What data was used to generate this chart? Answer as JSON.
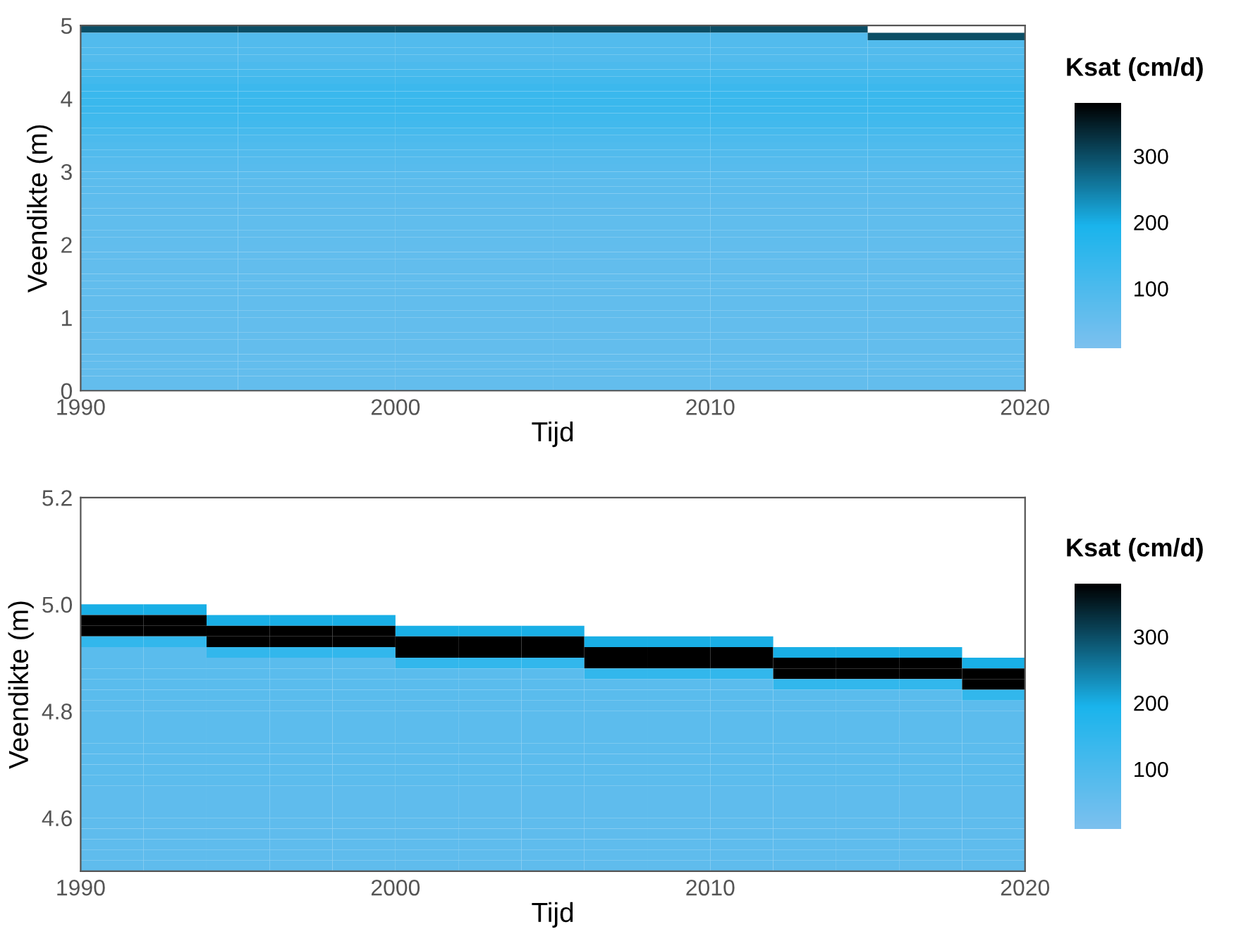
{
  "chart_data": [
    {
      "type": "heatmap",
      "xlabel": "Tijd",
      "ylabel": "Veendikte (m)",
      "clabel": "Ksat (cm/d)",
      "xlim": [
        1990,
        2020
      ],
      "xticks": [
        1990,
        2000,
        2010,
        2020
      ],
      "ylim": [
        0,
        5
      ],
      "yticks": [
        0,
        1,
        2,
        3,
        4,
        5
      ],
      "clim": [
        10,
        380
      ],
      "cticks": [
        100,
        200,
        300
      ],
      "colors": [
        "#7cc0ee",
        "#1ab4ec",
        "#000000"
      ],
      "grid": false,
      "x": [
        1992.5,
        1997.5,
        2002.5,
        2007.5,
        2012.5,
        2017.5
      ],
      "y": [
        4.95,
        4.85,
        4.75,
        4.65,
        4.55,
        4.45,
        4.35,
        4.25,
        4.15,
        4.05,
        3.95,
        3.85,
        3.75,
        3.65,
        3.55,
        3.45,
        3.35,
        3.25,
        3.15,
        3.05,
        2.95,
        2.85,
        2.75,
        2.65,
        2.55,
        2.45,
        2.35,
        2.25,
        2.15,
        2.05,
        1.95,
        1.85,
        1.75,
        1.65,
        1.55,
        1.45,
        1.35,
        1.25,
        1.15,
        1.05,
        0.95,
        0.85,
        0.75,
        0.65,
        0.55,
        0.45,
        0.35,
        0.25,
        0.15,
        0.05
      ],
      "cells": [
        [
          300,
          300,
          300,
          300,
          300,
          null
        ],
        [
          90,
          90,
          90,
          90,
          90,
          300
        ],
        [
          90,
          90,
          90,
          90,
          90,
          90
        ],
        [
          90,
          90,
          90,
          90,
          90,
          90
        ],
        [
          90,
          90,
          90,
          90,
          90,
          90
        ],
        [
          100,
          100,
          100,
          100,
          100,
          100
        ],
        [
          110,
          110,
          110,
          110,
          110,
          110
        ],
        [
          120,
          120,
          120,
          120,
          120,
          120
        ],
        [
          130,
          130,
          130,
          130,
          130,
          130
        ],
        [
          135,
          135,
          135,
          135,
          135,
          135
        ],
        [
          135,
          135,
          135,
          135,
          135,
          135
        ],
        [
          130,
          130,
          130,
          130,
          130,
          130
        ],
        [
          125,
          125,
          125,
          125,
          125,
          125
        ],
        [
          120,
          120,
          120,
          120,
          120,
          120
        ],
        [
          110,
          110,
          110,
          110,
          110,
          110
        ],
        [
          100,
          100,
          100,
          100,
          100,
          100
        ],
        [
          95,
          95,
          95,
          95,
          95,
          95
        ],
        [
          90,
          90,
          90,
          90,
          90,
          90
        ],
        [
          85,
          85,
          85,
          85,
          85,
          85
        ],
        [
          80,
          80,
          80,
          80,
          80,
          80
        ],
        [
          75,
          75,
          75,
          75,
          75,
          75
        ],
        [
          72,
          72,
          72,
          72,
          72,
          72
        ],
        [
          70,
          70,
          70,
          70,
          70,
          70
        ],
        [
          68,
          68,
          68,
          68,
          68,
          68
        ],
        [
          66,
          66,
          66,
          66,
          66,
          66
        ],
        [
          65,
          65,
          65,
          65,
          65,
          65
        ],
        [
          64,
          64,
          64,
          64,
          64,
          64
        ],
        [
          63,
          63,
          63,
          63,
          63,
          63
        ],
        [
          62,
          62,
          62,
          62,
          62,
          62
        ],
        [
          61,
          61,
          61,
          61,
          61,
          61
        ],
        [
          60,
          60,
          60,
          60,
          60,
          60
        ],
        [
          60,
          60,
          60,
          60,
          60,
          60
        ],
        [
          60,
          60,
          60,
          60,
          60,
          60
        ],
        [
          60,
          60,
          60,
          60,
          60,
          60
        ],
        [
          60,
          60,
          60,
          60,
          60,
          60
        ],
        [
          60,
          60,
          60,
          60,
          60,
          60
        ],
        [
          60,
          60,
          60,
          60,
          60,
          60
        ],
        [
          60,
          60,
          60,
          60,
          60,
          60
        ],
        [
          60,
          60,
          60,
          60,
          60,
          60
        ],
        [
          60,
          60,
          60,
          60,
          60,
          60
        ],
        [
          58,
          58,
          58,
          58,
          58,
          58
        ],
        [
          58,
          58,
          58,
          58,
          58,
          58
        ],
        [
          58,
          58,
          58,
          58,
          58,
          58
        ],
        [
          58,
          58,
          58,
          58,
          58,
          58
        ],
        [
          58,
          58,
          58,
          58,
          58,
          58
        ],
        [
          58,
          58,
          58,
          58,
          58,
          58
        ],
        [
          58,
          58,
          58,
          58,
          58,
          58
        ],
        [
          58,
          58,
          58,
          58,
          58,
          58
        ],
        [
          58,
          58,
          58,
          58,
          58,
          58
        ],
        [
          58,
          58,
          58,
          58,
          58,
          58
        ]
      ]
    },
    {
      "type": "heatmap",
      "xlabel": "Tijd",
      "ylabel": "Veendikte (m)",
      "clabel": "Ksat (cm/d)",
      "xlim": [
        1990,
        2020
      ],
      "xticks": [
        1990,
        2000,
        2010,
        2020
      ],
      "ylim": [
        4.5,
        5.2
      ],
      "yticks": [
        {
          "value": 4.6,
          "label": "4.6"
        },
        {
          "value": 4.8,
          "label": "4.8"
        },
        {
          "value": 5.0,
          "label": "5.0"
        },
        {
          "value": 5.2,
          "label": "5.2"
        }
      ],
      "clim": [
        10,
        380
      ],
      "cticks": [
        100,
        200,
        300
      ],
      "colors": [
        "#7cc0ee",
        "#1ab4ec",
        "#000000"
      ],
      "grid": false,
      "x": [
        1991,
        1993,
        1995,
        1997,
        1999,
        2001,
        2003,
        2005,
        2007,
        2009,
        2011,
        2013,
        2015,
        2017,
        2019
      ],
      "y": [
        4.99,
        4.97,
        4.95,
        4.93,
        4.91,
        4.89,
        4.87,
        4.85,
        4.83,
        4.81,
        4.79,
        4.77,
        4.75,
        4.73,
        4.71,
        4.69,
        4.67,
        4.65,
        4.63,
        4.61,
        4.59,
        4.57,
        4.55,
        4.53,
        4.51
      ],
      "cells": [
        [
          200,
          200,
          null,
          null,
          null,
          null,
          null,
          null,
          null,
          null,
          null,
          null,
          null,
          null,
          null
        ],
        [
          380,
          380,
          200,
          200,
          200,
          null,
          null,
          null,
          null,
          null,
          null,
          null,
          null,
          null,
          null
        ],
        [
          380,
          380,
          380,
          380,
          380,
          200,
          200,
          200,
          null,
          null,
          null,
          null,
          null,
          null,
          null
        ],
        [
          150,
          150,
          380,
          380,
          380,
          380,
          380,
          380,
          200,
          200,
          200,
          null,
          null,
          null,
          null
        ],
        [
          75,
          75,
          150,
          150,
          150,
          380,
          380,
          380,
          380,
          380,
          380,
          200,
          200,
          200,
          null
        ],
        [
          75,
          75,
          75,
          75,
          75,
          150,
          150,
          150,
          380,
          380,
          380,
          380,
          380,
          380,
          200
        ],
        [
          75,
          75,
          75,
          75,
          75,
          75,
          75,
          75,
          150,
          150,
          150,
          380,
          380,
          380,
          380
        ],
        [
          75,
          75,
          75,
          75,
          75,
          75,
          75,
          75,
          75,
          75,
          75,
          150,
          150,
          150,
          380
        ],
        [
          75,
          75,
          75,
          75,
          75,
          75,
          75,
          75,
          75,
          75,
          75,
          75,
          75,
          75,
          150
        ],
        [
          70,
          70,
          70,
          70,
          70,
          70,
          70,
          70,
          70,
          70,
          70,
          70,
          70,
          70,
          70
        ],
        [
          70,
          70,
          70,
          70,
          70,
          70,
          70,
          70,
          70,
          70,
          70,
          70,
          70,
          70,
          70
        ],
        [
          70,
          70,
          70,
          70,
          70,
          70,
          70,
          70,
          70,
          70,
          70,
          70,
          70,
          70,
          70
        ],
        [
          70,
          70,
          70,
          70,
          70,
          70,
          70,
          70,
          70,
          70,
          70,
          70,
          70,
          70,
          70
        ],
        [
          70,
          70,
          70,
          70,
          70,
          70,
          70,
          70,
          70,
          70,
          70,
          70,
          70,
          70,
          70
        ],
        [
          70,
          70,
          70,
          70,
          70,
          70,
          70,
          70,
          70,
          70,
          70,
          70,
          70,
          70,
          70
        ],
        [
          70,
          70,
          70,
          70,
          70,
          70,
          70,
          70,
          70,
          70,
          70,
          70,
          70,
          70,
          70
        ],
        [
          70,
          70,
          70,
          70,
          70,
          70,
          70,
          70,
          70,
          70,
          70,
          70,
          70,
          70,
          70
        ],
        [
          65,
          65,
          65,
          65,
          65,
          65,
          65,
          65,
          65,
          65,
          65,
          65,
          65,
          65,
          65
        ],
        [
          65,
          65,
          65,
          65,
          65,
          65,
          65,
          65,
          65,
          65,
          65,
          65,
          65,
          65,
          65
        ],
        [
          65,
          65,
          65,
          65,
          65,
          65,
          65,
          65,
          65,
          65,
          65,
          65,
          65,
          65,
          65
        ],
        [
          65,
          65,
          65,
          65,
          65,
          65,
          65,
          65,
          65,
          65,
          65,
          65,
          65,
          65,
          65
        ],
        [
          65,
          65,
          65,
          65,
          65,
          65,
          65,
          65,
          65,
          65,
          65,
          65,
          65,
          65,
          65
        ],
        [
          65,
          65,
          65,
          65,
          65,
          65,
          65,
          65,
          65,
          65,
          65,
          65,
          65,
          65,
          65
        ],
        [
          65,
          65,
          65,
          65,
          65,
          65,
          65,
          65,
          65,
          65,
          65,
          65,
          65,
          65,
          65
        ],
        [
          65,
          65,
          65,
          65,
          65,
          65,
          65,
          65,
          65,
          65,
          65,
          65,
          65,
          65,
          65
        ]
      ]
    }
  ]
}
